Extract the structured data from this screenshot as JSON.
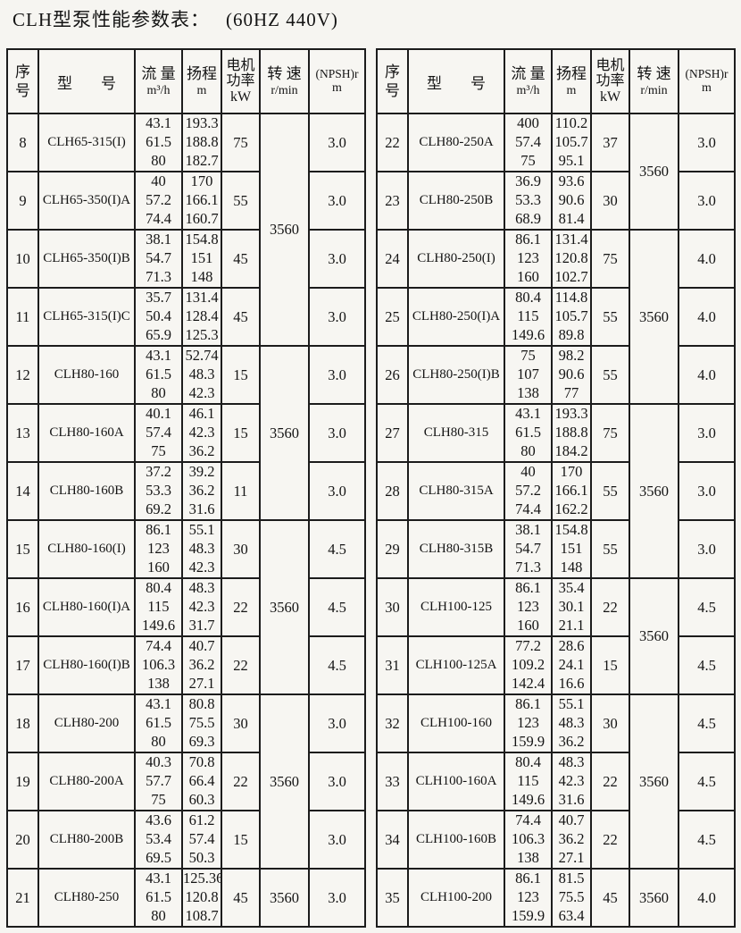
{
  "page_title": {
    "main": "CLH型泵性能参数表：",
    "spec": "(60HZ 440V)"
  },
  "table_header": {
    "index_line1": "序",
    "index_line2": "号",
    "model_char1": "型",
    "model_char2": "号",
    "flow_label": "流 量",
    "flow_unit": "m³/h",
    "head_label": "扬程",
    "head_unit": "m",
    "power_line1": "电机",
    "power_line2": "功率",
    "power_unit": "kW",
    "speed_label": "转 速",
    "speed_unit": "r/min",
    "npsh_label": "(NPSH)r",
    "npsh_unit": "m"
  },
  "tables": [
    {
      "name": "left",
      "rows": [
        {
          "no": "8",
          "model": "CLH65-315(I)",
          "flow": [
            "43.1",
            "61.5",
            "80"
          ],
          "head": [
            "193.3",
            "188.8",
            "182.7"
          ],
          "power": "75",
          "speed": "3560",
          "speed_rowspan": 4,
          "npsh": "3.0"
        },
        {
          "no": "9",
          "model": "CLH65-350(I)A",
          "flow": [
            "40",
            "57.2",
            "74.4"
          ],
          "head": [
            "170",
            "166.1",
            "160.7"
          ],
          "power": "55",
          "npsh": "3.0"
        },
        {
          "no": "10",
          "model": "CLH65-350(I)B",
          "flow": [
            "38.1",
            "54.7",
            "71.3"
          ],
          "head": [
            "154.8",
            "151",
            "148"
          ],
          "power": "45",
          "npsh": "3.0"
        },
        {
          "no": "11",
          "model": "CLH65-315(I)C",
          "flow": [
            "35.7",
            "50.4",
            "65.9"
          ],
          "head": [
            "131.4",
            "128.4",
            "125.3"
          ],
          "power": "45",
          "npsh": "3.0"
        },
        {
          "no": "12",
          "model": "CLH80-160",
          "flow": [
            "43.1",
            "61.5",
            "80"
          ],
          "head": [
            "52.74",
            "48.3",
            "42.3"
          ],
          "power": "15",
          "speed": "3560",
          "speed_rowspan": 3,
          "npsh": "3.0"
        },
        {
          "no": "13",
          "model": "CLH80-160A",
          "flow": [
            "40.1",
            "57.4",
            "75"
          ],
          "head": [
            "46.1",
            "42.3",
            "36.2"
          ],
          "power": "15",
          "npsh": "3.0"
        },
        {
          "no": "14",
          "model": "CLH80-160B",
          "flow": [
            "37.2",
            "53.3",
            "69.2"
          ],
          "head": [
            "39.2",
            "36.2",
            "31.6"
          ],
          "power": "11",
          "npsh": "3.0"
        },
        {
          "no": "15",
          "model": "CLH80-160(I)",
          "flow": [
            "86.1",
            "123",
            "160"
          ],
          "head": [
            "55.1",
            "48.3",
            "42.3"
          ],
          "power": "30",
          "speed": "3560",
          "speed_rowspan": 3,
          "npsh": "4.5"
        },
        {
          "no": "16",
          "model": "CLH80-160(I)A",
          "flow": [
            "80.4",
            "115",
            "149.6"
          ],
          "head": [
            "48.3",
            "42.3",
            "31.7"
          ],
          "power": "22",
          "npsh": "4.5"
        },
        {
          "no": "17",
          "model": "CLH80-160(I)B",
          "flow": [
            "74.4",
            "106.3",
            "138"
          ],
          "head": [
            "40.7",
            "36.2",
            "27.1"
          ],
          "power": "22",
          "npsh": "4.5"
        },
        {
          "no": "18",
          "model": "CLH80-200",
          "flow": [
            "43.1",
            "61.5",
            "80"
          ],
          "head": [
            "80.8",
            "75.5",
            "69.3"
          ],
          "power": "30",
          "speed": "3560",
          "speed_rowspan": 3,
          "npsh": "3.0"
        },
        {
          "no": "19",
          "model": "CLH80-200A",
          "flow": [
            "40.3",
            "57.7",
            "75"
          ],
          "head": [
            "70.8",
            "66.4",
            "60.3"
          ],
          "power": "22",
          "npsh": "3.0"
        },
        {
          "no": "20",
          "model": "CLH80-200B",
          "flow": [
            "43.6",
            "53.4",
            "69.5"
          ],
          "head": [
            "61.2",
            "57.4",
            "50.3"
          ],
          "power": "15",
          "npsh": "3.0"
        },
        {
          "no": "21",
          "model": "CLH80-250",
          "flow": [
            "43.1",
            "61.5",
            "80"
          ],
          "head": [
            "125.36",
            "120.8",
            "108.7"
          ],
          "power": "45",
          "speed": "3560",
          "speed_rowspan": 1,
          "npsh": "3.0"
        }
      ]
    },
    {
      "name": "right",
      "rows": [
        {
          "no": "22",
          "model": "CLH80-250A",
          "flow": [
            "400",
            "57.4",
            "75"
          ],
          "head": [
            "110.2",
            "105.7",
            "95.1"
          ],
          "power": "37",
          "speed": "3560",
          "speed_rowspan": 2,
          "npsh": "3.0"
        },
        {
          "no": "23",
          "model": "CLH80-250B",
          "flow": [
            "36.9",
            "53.3",
            "68.9"
          ],
          "head": [
            "93.6",
            "90.6",
            "81.4"
          ],
          "power": "30",
          "npsh": "3.0"
        },
        {
          "no": "24",
          "model": "CLH80-250(I)",
          "flow": [
            "86.1",
            "123",
            "160"
          ],
          "head": [
            "131.4",
            "120.8",
            "102.7"
          ],
          "power": "75",
          "speed": "3560",
          "speed_rowspan": 3,
          "npsh": "4.0"
        },
        {
          "no": "25",
          "model": "CLH80-250(I)A",
          "flow": [
            "80.4",
            "115",
            "149.6"
          ],
          "head": [
            "114.8",
            "105.7",
            "89.8"
          ],
          "power": "55",
          "npsh": "4.0"
        },
        {
          "no": "26",
          "model": "CLH80-250(I)B",
          "flow": [
            "75",
            "107",
            "138"
          ],
          "head": [
            "98.2",
            "90.6",
            "77"
          ],
          "power": "55",
          "npsh": "4.0"
        },
        {
          "no": "27",
          "model": "CLH80-315",
          "flow": [
            "43.1",
            "61.5",
            "80"
          ],
          "head": [
            "193.3",
            "188.8",
            "184.2"
          ],
          "power": "75",
          "speed": "3560",
          "speed_rowspan": 3,
          "npsh": "3.0"
        },
        {
          "no": "28",
          "model": "CLH80-315A",
          "flow": [
            "40",
            "57.2",
            "74.4"
          ],
          "head": [
            "170",
            "166.1",
            "162.2"
          ],
          "power": "55",
          "npsh": "3.0"
        },
        {
          "no": "29",
          "model": "CLH80-315B",
          "flow": [
            "38.1",
            "54.7",
            "71.3"
          ],
          "head": [
            "154.8",
            "151",
            "148"
          ],
          "power": "55",
          "npsh": "3.0"
        },
        {
          "no": "30",
          "model": "CLH100-125",
          "flow": [
            "86.1",
            "123",
            "160"
          ],
          "head": [
            "35.4",
            "30.1",
            "21.1"
          ],
          "power": "22",
          "speed": "3560",
          "speed_rowspan": 2,
          "npsh": "4.5"
        },
        {
          "no": "31",
          "model": "CLH100-125A",
          "flow": [
            "77.2",
            "109.2",
            "142.4"
          ],
          "head": [
            "28.6",
            "24.1",
            "16.6"
          ],
          "power": "15",
          "npsh": "4.5"
        },
        {
          "no": "32",
          "model": "CLH100-160",
          "flow": [
            "86.1",
            "123",
            "159.9"
          ],
          "head": [
            "55.1",
            "48.3",
            "36.2"
          ],
          "power": "30",
          "speed": "3560",
          "speed_rowspan": 3,
          "npsh": "4.5"
        },
        {
          "no": "33",
          "model": "CLH100-160A",
          "flow": [
            "80.4",
            "115",
            "149.6"
          ],
          "head": [
            "48.3",
            "42.3",
            "31.6"
          ],
          "power": "22",
          "npsh": "4.5"
        },
        {
          "no": "34",
          "model": "CLH100-160B",
          "flow": [
            "74.4",
            "106.3",
            "138"
          ],
          "head": [
            "40.7",
            "36.2",
            "27.1"
          ],
          "power": "22",
          "npsh": "4.5"
        },
        {
          "no": "35",
          "model": "CLH100-200",
          "flow": [
            "86.1",
            "123",
            "159.9"
          ],
          "head": [
            "81.5",
            "75.5",
            "63.4"
          ],
          "power": "45",
          "speed": "3560",
          "speed_rowspan": 1,
          "npsh": "4.0"
        }
      ]
    }
  ]
}
